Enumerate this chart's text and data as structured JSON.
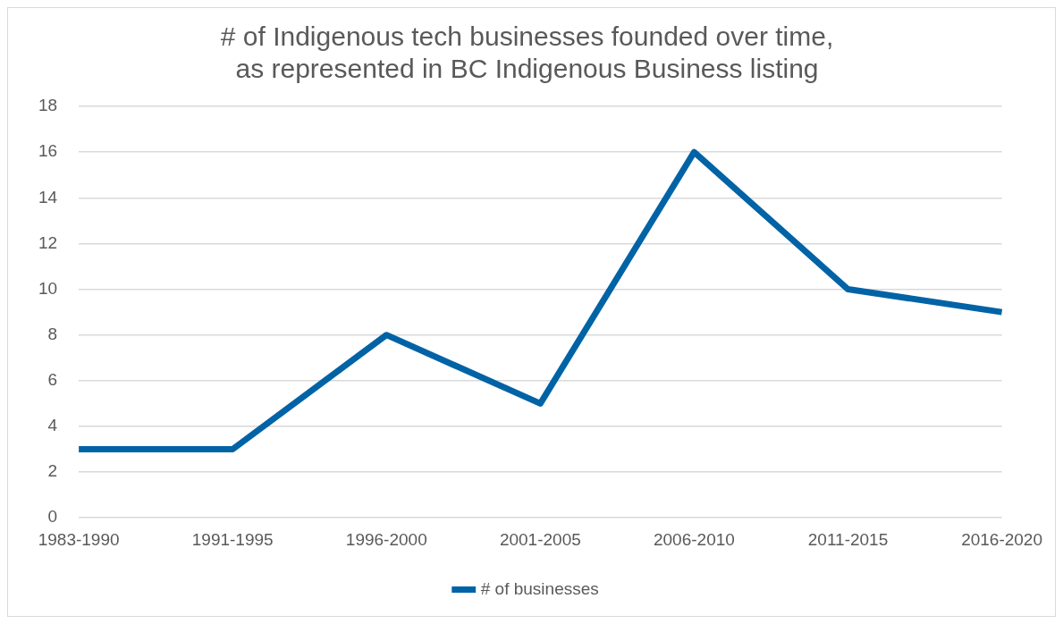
{
  "chart_data": {
    "type": "line",
    "title": "# of Indigenous tech businesses founded over time,\nas represented in BC Indigenous Business listing",
    "categories": [
      "1983-1990",
      "1991-1995",
      "1996-2000",
      "2001-2005",
      "2006-2010",
      "2011-2015",
      "2016-2020"
    ],
    "series": [
      {
        "name": "# of businesses",
        "color": "#0063a6",
        "values": [
          3,
          3,
          8,
          5,
          16,
          10,
          9
        ]
      }
    ],
    "ylim": [
      0,
      18
    ],
    "yticks": [
      0,
      2,
      4,
      6,
      8,
      10,
      12,
      14,
      16,
      18
    ],
    "grid": "y",
    "legend": "bottom",
    "marker": "none"
  }
}
